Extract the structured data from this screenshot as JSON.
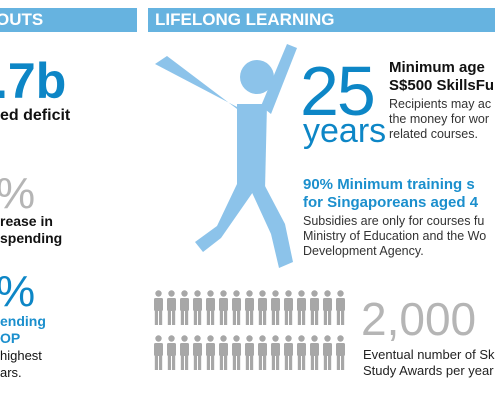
{
  "header": {
    "left_title": "OUTS",
    "right_title": "LIFELONG LEARNING"
  },
  "left_column": {
    "deficit_value": ".7b",
    "deficit_label": "ed deficit",
    "stat2_value": "%",
    "stat2_label_1": "rease in",
    "stat2_label_2": "spending",
    "stat3_value": "%",
    "stat3_label_1": "ending",
    "stat3_label_2": "OP",
    "stat3_text_1": "highest",
    "stat3_text_2": "ars."
  },
  "lifelong": {
    "age_number": "25",
    "age_unit": "years",
    "age_heading_1": "Minimum age",
    "age_heading_2": "S$500 SkillsFu",
    "age_text_1": "Recipients may ac",
    "age_text_2": "the money for wor",
    "age_text_3": "related courses.",
    "training_heading_1": "90% Minimum training s",
    "training_heading_2": "for Singaporeans aged 4",
    "training_text_1": "Subsidies are only for courses fu",
    "training_text_2": "Ministry of Education and the Wo",
    "training_text_3": "Development Agency.",
    "awards_number": "2,000",
    "awards_text_1": "Eventual number of Sk",
    "awards_text_2": "Study Awards per year"
  },
  "colors": {
    "header_bar": "#66b3e0",
    "accent_blue": "#0d86c6",
    "figure_blue": "#8cc3ea",
    "icon_grey": "#a7a7a7",
    "number_grey": "#b5b5b5"
  },
  "icons": {
    "hero_figure": "jumping-person-icon",
    "people_rows": "person-icon"
  }
}
